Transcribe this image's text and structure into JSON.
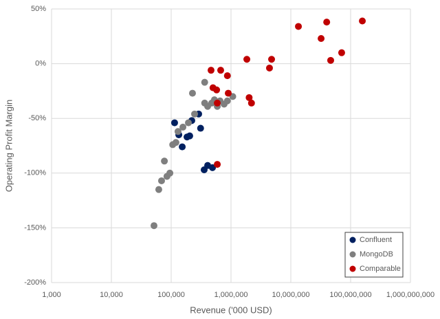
{
  "chart_data": {
    "type": "scatter",
    "x_label": "Revenue ('000 USD)",
    "y_label": "Operating Profit Margin",
    "x_log": true,
    "grid": true,
    "legend": "lower right",
    "xlim": [
      1000,
      1000000000
    ],
    "xticks": [
      {
        "value": 1000,
        "label": "1,000"
      },
      {
        "value": 10000,
        "label": "10,000"
      },
      {
        "value": 100000,
        "label": "100,000"
      },
      {
        "value": 1000000,
        "label": "1,000,000"
      },
      {
        "value": 10000000,
        "label": "10,000,000"
      },
      {
        "value": 100000000,
        "label": "100,000,000"
      },
      {
        "value": 1000000000,
        "label": "1,000,000,000"
      }
    ],
    "ylim": [
      -200,
      50
    ],
    "yticks": [
      {
        "value": 50,
        "label": "50%"
      },
      {
        "value": 0,
        "label": "0%"
      },
      {
        "value": -50,
        "label": "-50%"
      },
      {
        "value": -100,
        "label": "-100%"
      },
      {
        "value": -150,
        "label": "-150%"
      },
      {
        "value": -200,
        "label": "-200%"
      }
    ],
    "series": [
      {
        "name": "Confluent",
        "color": "#002060",
        "x": [
          114000,
          134000,
          153000,
          184000,
          204000,
          221000,
          288000,
          310000,
          356000,
          407000,
          490000
        ],
        "values": [
          -54,
          -65,
          -76,
          -67,
          -66,
          -52,
          -46,
          -59,
          -97,
          -93,
          -95
        ]
      },
      {
        "name": "MongoDB",
        "color": "#7f7f7f",
        "x": [
          51600,
          62000,
          69000,
          77000,
          85000,
          95000,
          106000,
          120000,
          130000,
          157000,
          194000,
          246000,
          227000,
          363000,
          363000,
          407000,
          476000,
          528000,
          590000,
          655000,
          767000,
          870000,
          1070000
        ],
        "values": [
          -148,
          -115,
          -107,
          -89,
          -103,
          -100,
          -74,
          -72,
          -62,
          -58,
          -54,
          -46,
          -27,
          -17,
          -36,
          -39,
          -36,
          -33,
          -39,
          -34,
          -37,
          -34,
          -30
        ]
      },
      {
        "name": "Comparable",
        "color": "#c00000",
        "x": [
          464000,
          500000,
          575000,
          590000,
          590000,
          672000,
          870000,
          900000,
          1840000,
          2010000,
          2200000,
          4400000,
          4770000,
          13400000,
          32100000,
          39800000,
          46400000,
          70800000,
          157000000
        ],
        "values": [
          -6,
          -22,
          -24,
          -36,
          -92,
          -6,
          -11,
          -27,
          4,
          -31,
          -36,
          -4,
          4,
          34,
          23,
          38,
          3,
          10,
          39
        ]
      }
    ]
  }
}
